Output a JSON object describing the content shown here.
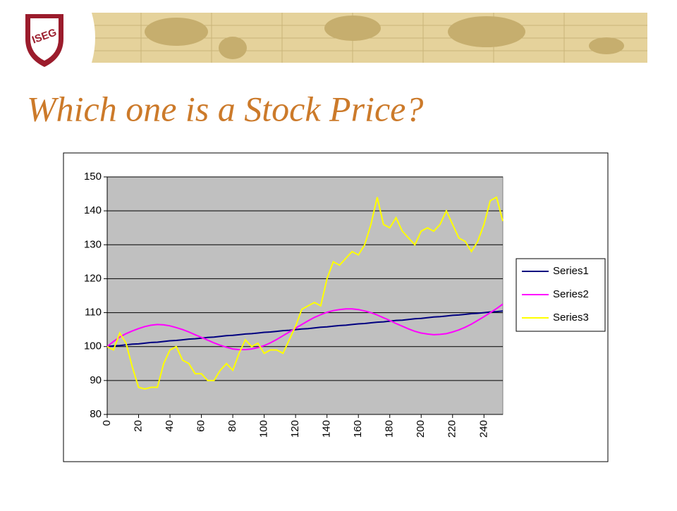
{
  "logo": "ISEG",
  "chart_data": {
    "type": "line",
    "title": "Which one is a Stock Price?",
    "x": [
      0,
      4,
      8,
      12,
      16,
      20,
      24,
      28,
      32,
      36,
      40,
      44,
      48,
      52,
      56,
      60,
      64,
      68,
      72,
      76,
      80,
      84,
      88,
      92,
      96,
      100,
      104,
      108,
      112,
      116,
      120,
      124,
      128,
      132,
      136,
      140,
      144,
      148,
      152,
      156,
      160,
      164,
      168,
      172,
      176,
      180,
      184,
      188,
      192,
      196,
      200,
      204,
      208,
      212,
      216,
      220,
      224,
      228,
      232,
      236,
      240,
      244,
      248,
      252
    ],
    "series": [
      {
        "name": "Series1",
        "color": "#000080",
        "values": [
          100,
          100.2,
          100.3,
          100.5,
          100.7,
          100.8,
          101,
          101.2,
          101.3,
          101.5,
          101.7,
          101.8,
          102,
          102.2,
          102.3,
          102.5,
          102.7,
          102.8,
          103,
          103.2,
          103.3,
          103.5,
          103.7,
          103.8,
          104,
          104.2,
          104.3,
          104.5,
          104.7,
          104.8,
          105,
          105.2,
          105.3,
          105.5,
          105.7,
          105.8,
          106,
          106.2,
          106.3,
          106.5,
          106.7,
          106.8,
          107,
          107.2,
          107.3,
          107.5,
          107.7,
          107.8,
          108,
          108.2,
          108.3,
          108.5,
          108.7,
          108.8,
          109,
          109.2,
          109.3,
          109.5,
          109.7,
          109.8,
          110,
          110.2,
          110.3,
          110.5
        ]
      },
      {
        "name": "Series2",
        "color": "#ff00ff",
        "values": [
          100,
          101.5,
          102.8,
          103.8,
          104.6,
          105.3,
          105.9,
          106.3,
          106.5,
          106.4,
          106.1,
          105.6,
          105,
          104.3,
          103.5,
          102.7,
          101.9,
          101.1,
          100.4,
          99.8,
          99.3,
          99.1,
          99.1,
          99.3,
          99.7,
          100.3,
          101.1,
          102.1,
          103.2,
          104.3,
          105.4,
          106.5,
          107.6,
          108.6,
          109.4,
          110.1,
          110.6,
          110.9,
          111.1,
          111.1,
          110.9,
          110.5,
          110,
          109.3,
          108.5,
          107.7,
          106.8,
          106,
          105.2,
          104.5,
          104,
          103.7,
          103.5,
          103.6,
          103.8,
          104.3,
          104.9,
          105.7,
          106.6,
          107.7,
          108.8,
          110,
          111.2,
          112.5
        ]
      },
      {
        "name": "Series3",
        "color": "#ffff00",
        "values": [
          100,
          99,
          104,
          101,
          94,
          88,
          87.5,
          88,
          88,
          95,
          99,
          100,
          96,
          95,
          92,
          92,
          90,
          90,
          93,
          95,
          93,
          98,
          102,
          100,
          101,
          98,
          99,
          99,
          98,
          102,
          106,
          111,
          112,
          113,
          112,
          120,
          125,
          124,
          126,
          128,
          127,
          130,
          136,
          144,
          136,
          135,
          138,
          134,
          132,
          130,
          134,
          135,
          134,
          136,
          140,
          136,
          132,
          131,
          128,
          131,
          136,
          143,
          144,
          137
        ]
      }
    ],
    "xlim": [
      0,
      252
    ],
    "xticks": [
      0,
      20,
      40,
      60,
      80,
      100,
      120,
      140,
      160,
      180,
      200,
      220,
      240
    ],
    "ylim": [
      80,
      150
    ],
    "yticks": [
      80,
      90,
      100,
      110,
      120,
      130,
      140,
      150
    ],
    "grid": true,
    "legend": "right"
  }
}
